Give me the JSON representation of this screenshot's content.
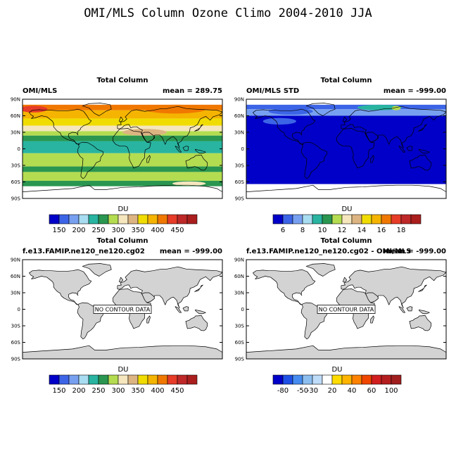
{
  "figure": {
    "title": "OMI/MLS Column Ozone Climo 2004-2010 JJA"
  },
  "chart_data": [
    {
      "type": "heatmap",
      "panel": "top-left",
      "center_title": "Total Column",
      "left_label": "OMI/MLS",
      "mean_label": "mean = 289.75",
      "no_data_label": "",
      "y_ticks": [
        "90N",
        "60N",
        "30N",
        "0",
        "30S",
        "60S",
        "90S"
      ],
      "y_values": [
        90,
        60,
        30,
        0,
        -30,
        -60,
        -90
      ],
      "colorbar": {
        "label": "DU",
        "colors": [
          "#0000c8",
          "#3c64e6",
          "#78a0f0",
          "#a8dcf0",
          "#28b4a0",
          "#2a9650",
          "#b4dc50",
          "#f5e6be",
          "#dcb482",
          "#f0dc00",
          "#f5b400",
          "#f07800",
          "#e63c28",
          "#be2828",
          "#aa1e1e"
        ],
        "tick_labels": [
          "150",
          "200",
          "250",
          "300",
          "350",
          "400",
          "450"
        ],
        "tick_after_box": [
          1,
          3,
          5,
          7,
          9,
          11,
          13
        ]
      },
      "bands": [
        {
          "lat_top": 90,
          "lat_bottom": 80,
          "color": "#ffffff"
        },
        {
          "lat_top": 80,
          "lat_bottom": 70,
          "color": "#f07800"
        },
        {
          "lat_top": 70,
          "lat_bottom": 55,
          "color": "#f5b400"
        },
        {
          "lat_top": 55,
          "lat_bottom": 42,
          "color": "#f0dc00"
        },
        {
          "lat_top": 42,
          "lat_bottom": 32,
          "color": "#f5e6be"
        },
        {
          "lat_top": 32,
          "lat_bottom": 24,
          "color": "#b4dc50"
        },
        {
          "lat_top": 24,
          "lat_bottom": 14,
          "color": "#2a9650"
        },
        {
          "lat_top": 14,
          "lat_bottom": -8,
          "color": "#28b4a0"
        },
        {
          "lat_top": -8,
          "lat_bottom": -32,
          "color": "#b4dc50"
        },
        {
          "lat_top": -32,
          "lat_bottom": -42,
          "color": "#2a9650"
        },
        {
          "lat_top": -42,
          "lat_bottom": -58,
          "color": "#b4dc50"
        },
        {
          "lat_top": -58,
          "lat_bottom": -68,
          "color": "#2a9650"
        },
        {
          "lat_top": -68,
          "lat_bottom": -90,
          "color": "#ffffff"
        }
      ],
      "patches": [
        {
          "lon": 95,
          "lat": 72,
          "rlon": 55,
          "rlat": 8,
          "color": "#f07800"
        },
        {
          "lon": -160,
          "lat": 72,
          "rlon": 25,
          "rlat": 6,
          "color": "#e63c28"
        },
        {
          "lon": 40,
          "lat": 30,
          "rlon": 40,
          "rlat": 6,
          "color": "#dcb482"
        },
        {
          "lon": 120,
          "lat": -63,
          "rlon": 30,
          "rlat": 4,
          "color": "#f5e6be"
        }
      ]
    },
    {
      "type": "heatmap",
      "panel": "top-right",
      "center_title": "Total Column",
      "left_label": "OMI/MLS STD",
      "mean_label": "mean = -999.00",
      "no_data_label": "",
      "y_ticks": [
        "90N",
        "60N",
        "30N",
        "0",
        "30S",
        "60S",
        "90S"
      ],
      "y_values": [
        90,
        60,
        30,
        0,
        -30,
        -60,
        -90
      ],
      "colorbar": {
        "label": "DU",
        "colors": [
          "#0000c8",
          "#3c64e6",
          "#78a0f0",
          "#a8dcf0",
          "#28b4a0",
          "#2a9650",
          "#b4dc50",
          "#f5e6be",
          "#dcb482",
          "#f0dc00",
          "#f5b400",
          "#f07800",
          "#e63c28",
          "#be2828",
          "#aa1e1e"
        ],
        "tick_labels": [
          "6",
          "8",
          "10",
          "12",
          "14",
          "16",
          "18"
        ],
        "tick_after_box": [
          1,
          3,
          5,
          7,
          9,
          11,
          13
        ]
      },
      "bands": [
        {
          "lat_top": 90,
          "lat_bottom": 80,
          "color": "#ffffff"
        },
        {
          "lat_top": 80,
          "lat_bottom": 72,
          "color": "#3c64e6"
        },
        {
          "lat_top": 72,
          "lat_bottom": 60,
          "color": "#78a0f0"
        },
        {
          "lat_top": 60,
          "lat_bottom": -64,
          "color": "#0000c8"
        },
        {
          "lat_top": -64,
          "lat_bottom": -90,
          "color": "#ffffff"
        }
      ],
      "patches": [
        {
          "lon": 60,
          "lat": 75,
          "rlon": 40,
          "rlat": 5,
          "color": "#28b4a0"
        },
        {
          "lon": 90,
          "lat": 74,
          "rlon": 8,
          "rlat": 4,
          "color": "#b4dc50"
        },
        {
          "lon": -100,
          "lat": 68,
          "rlon": 40,
          "rlat": 6,
          "color": "#3c64e6"
        },
        {
          "lon": -120,
          "lat": 50,
          "rlon": 30,
          "rlat": 6,
          "color": "#3c64e6"
        }
      ]
    },
    {
      "type": "heatmap",
      "panel": "bottom-left",
      "center_title": "Total Column",
      "left_label": "f.e13.FAMIP.ne120_ne120.cg02",
      "mean_label": "mean = -999.00",
      "no_data_label": "NO CONTOUR DATA",
      "y_ticks": [
        "90N",
        "60N",
        "30N",
        "0",
        "30S",
        "60S",
        "90S"
      ],
      "y_values": [
        90,
        60,
        30,
        0,
        -30,
        -60,
        -90
      ],
      "colorbar": {
        "label": "DU",
        "colors": [
          "#0000c8",
          "#3c64e6",
          "#78a0f0",
          "#a8dcf0",
          "#28b4a0",
          "#2a9650",
          "#b4dc50",
          "#f5e6be",
          "#dcb482",
          "#f0dc00",
          "#f5b400",
          "#f07800",
          "#e63c28",
          "#be2828",
          "#aa1e1e"
        ],
        "tick_labels": [
          "150",
          "200",
          "250",
          "300",
          "350",
          "400",
          "450"
        ],
        "tick_after_box": [
          1,
          3,
          5,
          7,
          9,
          11,
          13
        ]
      },
      "bands": [],
      "patches": []
    },
    {
      "type": "heatmap",
      "panel": "bottom-right",
      "center_title": "Total Column",
      "left_label": "f.e13.FAMIP.ne120_ne120.cg02 - OMI/MLS",
      "mean_label": "mean = -999.00",
      "no_data_label": "NO CONTOUR DATA",
      "y_ticks": [
        "90N",
        "60N",
        "30N",
        "0",
        "30S",
        "60S",
        "90S"
      ],
      "y_values": [
        90,
        60,
        30,
        0,
        -30,
        -60,
        -90
      ],
      "colorbar": {
        "label": "DU",
        "colors": [
          "#0000c8",
          "#1e50e6",
          "#468cf0",
          "#8cbef0",
          "#bedcf8",
          "#ffffff",
          "#ffdc00",
          "#ffb400",
          "#ff8200",
          "#f04600",
          "#d21e1e",
          "#b41e1e",
          "#a01e1e"
        ],
        "tick_labels": [
          "-80",
          "-50",
          "-30",
          "20",
          "40",
          "60",
          "100"
        ],
        "tick_after_box": [
          1,
          3,
          4,
          6,
          8,
          10,
          12
        ]
      },
      "bands": [],
      "patches": []
    }
  ]
}
